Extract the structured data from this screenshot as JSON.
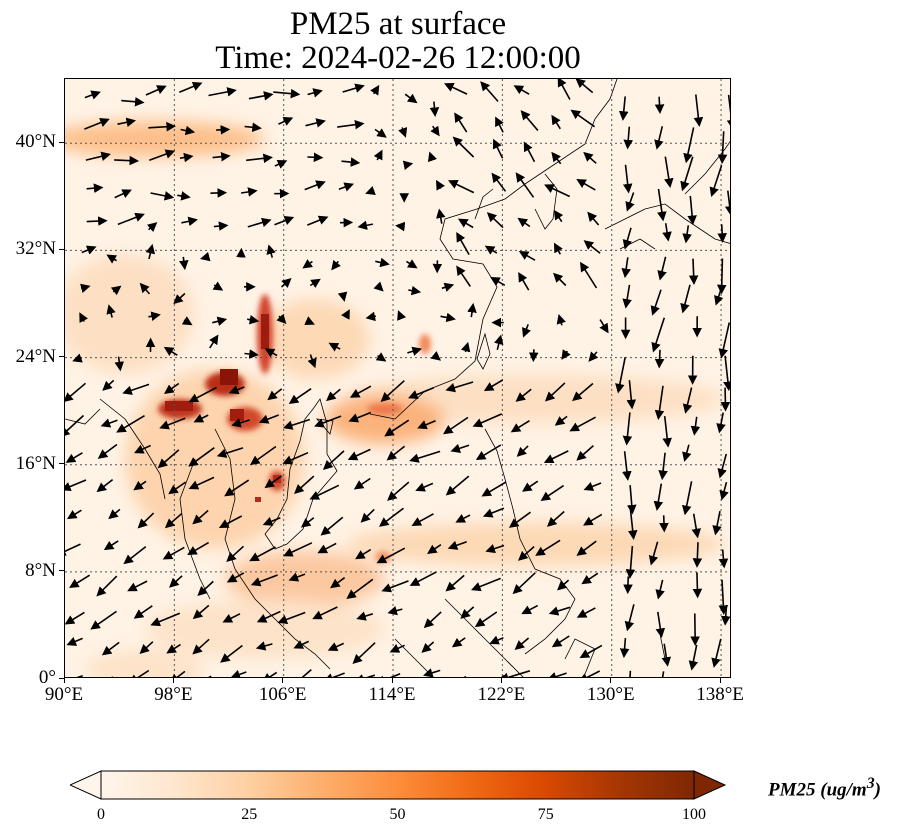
{
  "title_line1": "PM25 at surface",
  "title_line2": "Time: 2024-02-26 12:00:00",
  "map": {
    "lon_range": [
      90,
      138.8
    ],
    "lat_range": [
      0,
      44.8
    ],
    "x_ticks": [
      {
        "value": 90,
        "label": "90°E"
      },
      {
        "value": 98,
        "label": "98°E"
      },
      {
        "value": 106,
        "label": "106°E"
      },
      {
        "value": 114,
        "label": "114°E"
      },
      {
        "value": 122,
        "label": "122°E"
      },
      {
        "value": 130,
        "label": "130°E"
      },
      {
        "value": 138,
        "label": "138°E"
      }
    ],
    "y_ticks": [
      {
        "value": 0,
        "label": "0°"
      },
      {
        "value": 8,
        "label": "8°N"
      },
      {
        "value": 16,
        "label": "16°N"
      },
      {
        "value": 24,
        "label": "24°N"
      },
      {
        "value": 32,
        "label": "32°N"
      },
      {
        "value": 40,
        "label": "40°N"
      }
    ],
    "gridlines": true,
    "field": "PM25",
    "wind_vectors": true
  },
  "colorbar": {
    "label": "PM25 (ug/m³)",
    "label_main": "PM25 (ug/m",
    "label_sup": "3",
    "label_close": ")",
    "min": 0,
    "max": 100,
    "extend": "both",
    "ticks": [
      {
        "value": 0,
        "label": "0"
      },
      {
        "value": 25,
        "label": "25"
      },
      {
        "value": 50,
        "label": "50"
      },
      {
        "value": 75,
        "label": "75"
      },
      {
        "value": 100,
        "label": "100"
      }
    ],
    "colors": [
      "#fff5eb",
      "#fee6ce",
      "#fdd0a2",
      "#fdae6b",
      "#fd8d3c",
      "#f16913",
      "#d94801",
      "#a63603",
      "#7f2704"
    ]
  }
}
